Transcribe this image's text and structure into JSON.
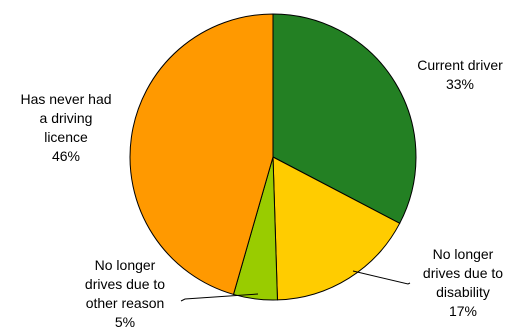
{
  "chart_data": {
    "type": "pie",
    "start_angle_deg": 0,
    "direction": "clockwise",
    "slices": [
      {
        "label": [
          "Current driver"
        ],
        "value": 33,
        "value_label": "33%",
        "color": "#238023"
      },
      {
        "label": [
          "No longer",
          "drives due to",
          "disability"
        ],
        "value": 17,
        "value_label": "17%",
        "color": "#FFCC00"
      },
      {
        "label": [
          "No longer",
          "drives due to",
          "other reason"
        ],
        "value": 5,
        "value_label": "5%",
        "color": "#99CC00"
      },
      {
        "label": [
          "Has never had",
          "a driving",
          "licence"
        ],
        "value": 46,
        "value_label": "46%",
        "color": "#FF9900"
      }
    ]
  }
}
